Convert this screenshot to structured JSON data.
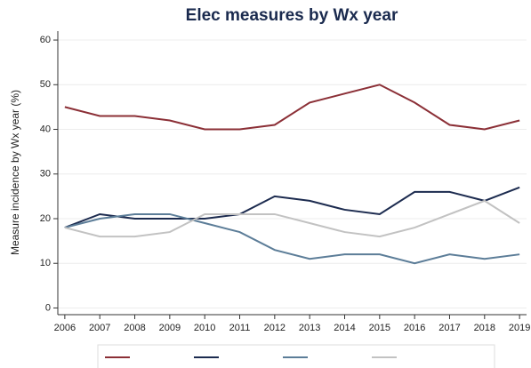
{
  "chart_data": {
    "type": "line",
    "title": "Elec measures by Wx year",
    "y_label": "Measure incidence by Wx year (%)",
    "x": [
      2006,
      2007,
      2008,
      2009,
      2010,
      2011,
      2012,
      2013,
      2014,
      2015,
      2016,
      2017,
      2018,
      2019
    ],
    "series": [
      {
        "color": "#8b2f36",
        "values": [
          45,
          43,
          43,
          42,
          40,
          40,
          41,
          46,
          48,
          50,
          46,
          41,
          40,
          42
        ]
      },
      {
        "color": "#1c2b4f",
        "values": [
          18,
          21,
          20,
          20,
          20,
          21,
          25,
          24,
          22,
          21,
          26,
          26,
          24,
          27
        ]
      },
      {
        "color": "#5c7d98",
        "values": [
          18,
          20,
          21,
          21,
          19,
          17,
          13,
          11,
          12,
          12,
          10,
          12,
          11,
          12
        ]
      },
      {
        "color": "#c2c2c2",
        "values": [
          18,
          16,
          16,
          17,
          21,
          21,
          21,
          19,
          17,
          16,
          18,
          21,
          24,
          19
        ]
      }
    ],
    "xlim": [
      2005.8,
      2019.2
    ],
    "xticks": [
      2006,
      2007,
      2008,
      2009,
      2010,
      2011,
      2012,
      2013,
      2014,
      2015,
      2016,
      2017,
      2018,
      2019
    ],
    "ylim": [
      -1.5,
      62
    ],
    "yticks": [
      0,
      10,
      20,
      30,
      40,
      50,
      60
    ],
    "grid": true
  }
}
